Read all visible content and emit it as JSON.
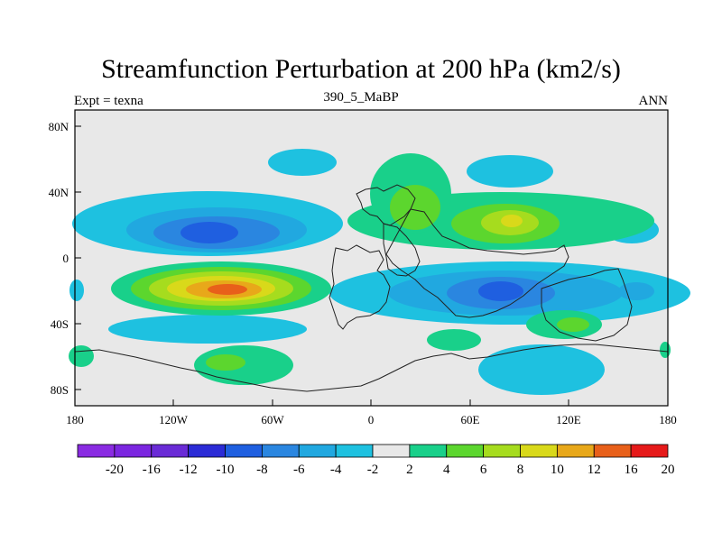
{
  "title": "Streamfunction Perturbation at 200 hPa (km2/s)",
  "left_label": "Expt = texna",
  "center_label": "390_5_MaBP",
  "right_label": "ANN",
  "lat_ticks": [
    "80N",
    "40N",
    "0",
    "40S",
    "80S"
  ],
  "lon_ticks": [
    "180",
    "120W",
    "60W",
    "0",
    "60E",
    "120E",
    "180"
  ],
  "colorbar": {
    "colors": [
      "#8a2be2",
      "#7b26e0",
      "#6a2bd6",
      "#2b2bd6",
      "#1f5fe0",
      "#2a86e0",
      "#21a8e0",
      "#1ec1e0",
      "#e8e8e8",
      "#19d08a",
      "#5cd62e",
      "#a6dc1e",
      "#d9d91a",
      "#e8a81a",
      "#e8601a",
      "#e61a1a"
    ],
    "labels": [
      "-20",
      "-16",
      "-12",
      "-10",
      "-8",
      "-6",
      "-4",
      "-2",
      "2",
      "4",
      "6",
      "8",
      "10",
      "12",
      "16",
      "20"
    ]
  },
  "colors": {
    "background": "#e8e8e8",
    "neg1": "#1ec1e0",
    "neg2": "#21a8e0",
    "neg3": "#2a86e0",
    "neg4": "#1f5fe0",
    "pos1": "#19d08a",
    "pos2": "#5cd62e",
    "pos3": "#a6dc1e",
    "pos4": "#d9d91a",
    "pos5": "#e8a81a",
    "pos6": "#e8601a",
    "pos7": "#e61a1a"
  }
}
